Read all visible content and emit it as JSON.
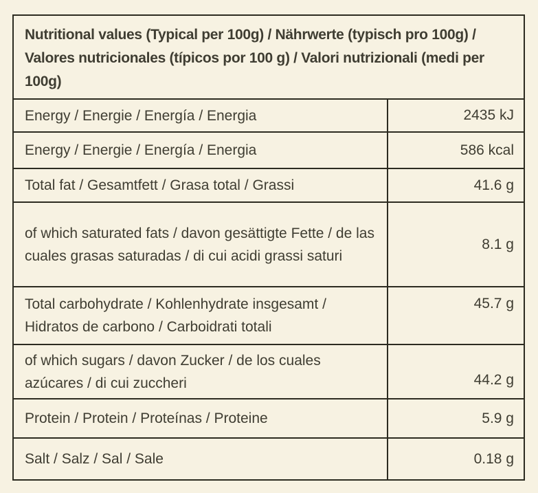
{
  "colors": {
    "background": "#F7F2E2",
    "border": "#2C2B20",
    "text": "#3F3D32"
  },
  "table": {
    "header": "Nutritional values (Typical per 100g) / Nährwerte (typisch pro 100g) / Valores nutricionales (típicos por 100 g) / Valori nutrizionali (medi per 100g)",
    "rows": [
      {
        "label": "Energy / Energie / Energía / Energia",
        "value": "2435 kJ"
      },
      {
        "label": "Energy / Energie / Energía / Energia",
        "value": "586 kcal"
      },
      {
        "label": "Total fat / Gesamtfett / Grasa total / Grassi",
        "value": "41.6 g"
      },
      {
        "label": "of which saturated fats / davon gesättigte Fette / de las cuales grasas saturadas / di cui acidi grassi saturi",
        "value": "8.1 g"
      },
      {
        "label": "Total carbohydrate / Kohlenhydrate insgesamt / Hidratos de carbono / Carboidrati totali",
        "value": "45.7 g"
      },
      {
        "label": "of which sugars / davon Zucker / de los cuales azúcares / di cui zuccheri",
        "value": "44.2 g"
      },
      {
        "label": "Protein / Protein / Proteínas / Proteine",
        "value": "5.9 g"
      },
      {
        "label": "Salt / Salz / Sal / Sale",
        "value": "0.18 g"
      }
    ]
  }
}
